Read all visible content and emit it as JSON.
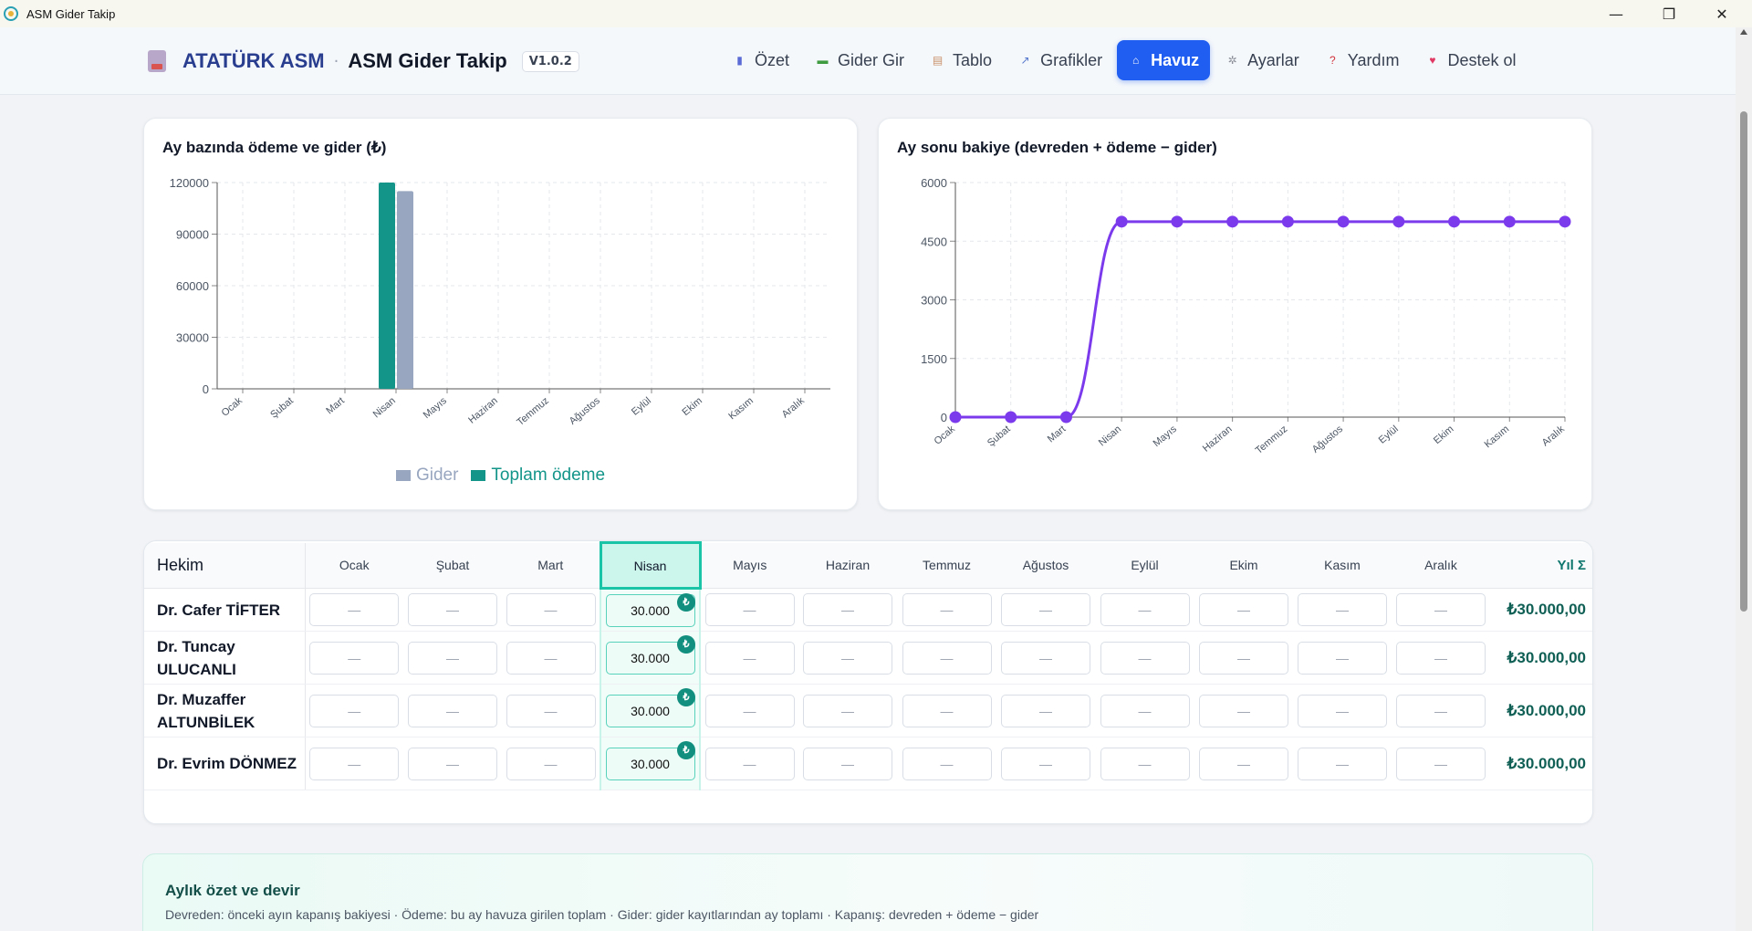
{
  "window": {
    "title": "ASM Gider Takip",
    "min": "—",
    "max": "❐",
    "close": "✕"
  },
  "header": {
    "brand": "ATATÜRK ASM",
    "separator": "·",
    "app_name": "ASM Gider Takip",
    "version": "V1.0.2",
    "nav": [
      {
        "label": "Özet",
        "icon": "bar-chart-icon",
        "color": "#5b6bd5"
      },
      {
        "label": "Gider Gir",
        "icon": "money-icon",
        "color": "#3f9b3f"
      },
      {
        "label": "Tablo",
        "icon": "clipboard-icon",
        "color": "#c9906a"
      },
      {
        "label": "Grafikler",
        "icon": "trend-chart-icon",
        "color": "#5577cc"
      },
      {
        "label": "Havuz",
        "icon": "bank-icon",
        "color": "#ffffff",
        "active": true
      },
      {
        "label": "Ayarlar",
        "icon": "gear-icon",
        "color": "#8a8f98"
      },
      {
        "label": "Yardım",
        "icon": "question-icon",
        "color": "#d0343c"
      },
      {
        "label": "Destek ol",
        "icon": "heart-icon",
        "color": "#e03963"
      }
    ]
  },
  "chart_data": [
    {
      "type": "bar",
      "title": "Ay bazında ödeme ve gider (₺)",
      "categories": [
        "Ocak",
        "Şubat",
        "Mart",
        "Nisan",
        "Mayıs",
        "Haziran",
        "Temmuz",
        "Ağustos",
        "Eylül",
        "Ekim",
        "Kasım",
        "Aralık"
      ],
      "series": [
        {
          "name": "Toplam ödeme",
          "color": "#14958a",
          "values": [
            0,
            0,
            0,
            120000,
            0,
            0,
            0,
            0,
            0,
            0,
            0,
            0
          ]
        },
        {
          "name": "Gider",
          "color": "#98a6bf",
          "values": [
            0,
            0,
            0,
            115000,
            0,
            0,
            0,
            0,
            0,
            0,
            0,
            0
          ]
        }
      ],
      "yticks": [
        0,
        30000,
        60000,
        90000,
        120000
      ],
      "ylim": [
        0,
        120000
      ],
      "legend": [
        "Gider",
        "Toplam ödeme"
      ],
      "grid": true
    },
    {
      "type": "line",
      "title": "Ay sonu bakiye (devreden + ödeme − gider)",
      "categories": [
        "Ocak",
        "Şubat",
        "Mart",
        "Nisan",
        "Mayıs",
        "Haziran",
        "Temmuz",
        "Ağustos",
        "Eylül",
        "Ekim",
        "Kasım",
        "Aralık"
      ],
      "series": [
        {
          "color": "#7c3aed",
          "values": [
            0,
            0,
            0,
            5000,
            5000,
            5000,
            5000,
            5000,
            5000,
            5000,
            5000,
            5000
          ]
        }
      ],
      "yticks": [
        0,
        1500,
        3000,
        4500,
        6000
      ],
      "ylim": [
        0,
        6000
      ],
      "grid": true
    }
  ],
  "table": {
    "hekim_header": "Hekim",
    "months": [
      "Ocak",
      "Şubat",
      "Mart",
      "Nisan",
      "Mayıs",
      "Haziran",
      "Temmuz",
      "Ağustos",
      "Eylül",
      "Ekim",
      "Kasım",
      "Aralık"
    ],
    "current_month_index": 3,
    "total_header": "Yıl Σ",
    "empty_value": "—",
    "badge_symbol": "₺",
    "rows": [
      {
        "name": "Dr. Cafer TİFTER",
        "values": [
          "",
          "",
          "",
          "30.000",
          "",
          "",
          "",
          "",
          "",
          "",
          "",
          ""
        ],
        "total": "₺30.000,00"
      },
      {
        "name": "Dr. Tuncay ULUCANLI",
        "values": [
          "",
          "",
          "",
          "30.000",
          "",
          "",
          "",
          "",
          "",
          "",
          "",
          ""
        ],
        "total": "₺30.000,00"
      },
      {
        "name": "Dr. Muzaffer ALTUNBİLEK",
        "values": [
          "",
          "",
          "",
          "30.000",
          "",
          "",
          "",
          "",
          "",
          "",
          "",
          ""
        ],
        "total": "₺30.000,00"
      },
      {
        "name": "Dr. Evrim DÖNMEZ",
        "values": [
          "",
          "",
          "",
          "30.000",
          "",
          "",
          "",
          "",
          "",
          "",
          "",
          ""
        ],
        "total": "₺30.000,00"
      }
    ]
  },
  "summary": {
    "title": "Aylık özet ve devir",
    "description": "Devreden: önceki ayın kapanış bakiyesi · Ödeme: bu ay havuza girilen toplam · Gider: gider kayıtlarından ay toplamı · Kapanış: devreden + ödeme − gider"
  }
}
